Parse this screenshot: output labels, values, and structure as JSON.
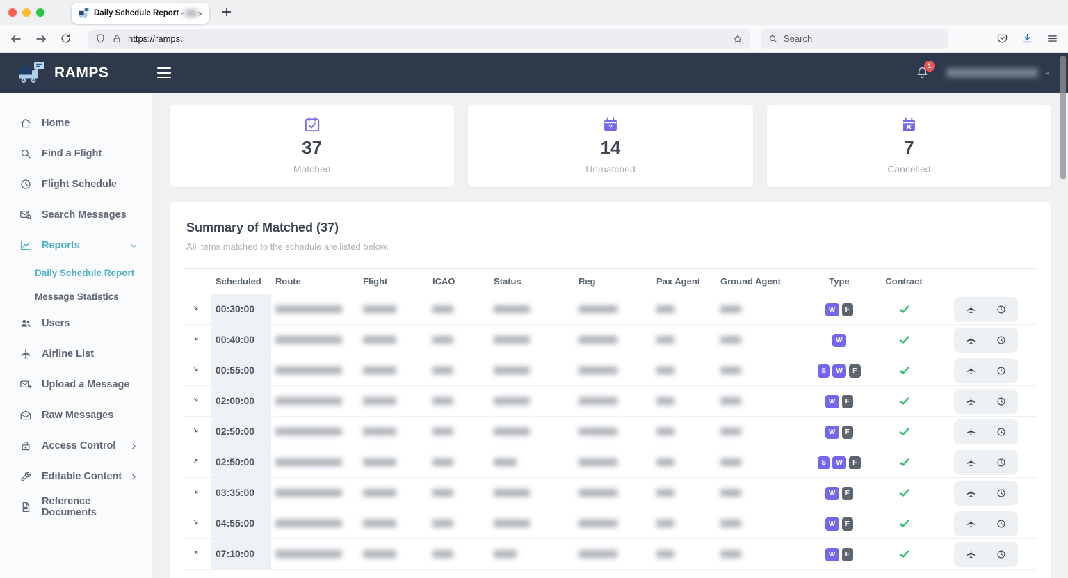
{
  "browser": {
    "tab_title": "Daily Schedule Report - ",
    "new_tab": "+",
    "close_tab": "×",
    "url": "https://ramps.",
    "search_placeholder": "Search"
  },
  "header": {
    "brand": "RAMPS",
    "notification_count": "1"
  },
  "sidebar": {
    "items": [
      {
        "label": "Home",
        "icon": "home"
      },
      {
        "label": "Find a Flight",
        "icon": "search"
      },
      {
        "label": "Flight Schedule",
        "icon": "clock"
      },
      {
        "label": "Search Messages",
        "icon": "mail-search"
      },
      {
        "label": "Reports",
        "icon": "chart",
        "active": true,
        "expand": "down",
        "children": [
          {
            "label": "Daily Schedule Report",
            "active": true
          },
          {
            "label": "Message Statistics",
            "active": false
          }
        ]
      },
      {
        "label": "Users",
        "icon": "users"
      },
      {
        "label": "Airline List",
        "icon": "plane"
      },
      {
        "label": "Upload a Message",
        "icon": "mail-plus"
      },
      {
        "label": "Raw Messages",
        "icon": "mail-open"
      },
      {
        "label": "Access Control",
        "icon": "lock",
        "expand": "right"
      },
      {
        "label": "Editable Content",
        "icon": "wrench",
        "expand": "right"
      },
      {
        "label": "Reference Documents",
        "icon": "document"
      }
    ]
  },
  "stats": [
    {
      "icon": "calendar-check",
      "value": "37",
      "label": "Matched"
    },
    {
      "icon": "calendar-question",
      "value": "14",
      "label": "Unmatched"
    },
    {
      "icon": "calendar-x",
      "value": "7",
      "label": "Cancelled"
    }
  ],
  "summary": {
    "title": "Summary of Matched (37)",
    "subtitle": "All items matched to the schedule are listed below."
  },
  "table": {
    "columns": [
      "Scheduled",
      "Route",
      "Flight",
      "ICAO",
      "Status",
      "Reg",
      "Pax Agent",
      "Ground Agent",
      "Type",
      "Contract"
    ],
    "redacted_columns": [
      "Route",
      "Flight",
      "ICAO",
      "Status",
      "Reg",
      "Pax Agent",
      "Ground Agent"
    ],
    "rows": [
      {
        "direction": "arrival",
        "scheduled": "00:30:00",
        "type_badges": [
          "W",
          "F"
        ],
        "contract": true
      },
      {
        "direction": "arrival",
        "scheduled": "00:40:00",
        "type_badges": [
          "W"
        ],
        "contract": true
      },
      {
        "direction": "arrival",
        "scheduled": "00:55:00",
        "type_badges": [
          "S",
          "W",
          "F"
        ],
        "contract": true
      },
      {
        "direction": "arrival",
        "scheduled": "02:00:00",
        "type_badges": [
          "W",
          "F"
        ],
        "contract": true
      },
      {
        "direction": "arrival",
        "scheduled": "02:50:00",
        "type_badges": [
          "W",
          "F"
        ],
        "contract": true
      },
      {
        "direction": "departure",
        "scheduled": "02:50:00",
        "type_badges": [
          "S",
          "W",
          "F"
        ],
        "contract": true
      },
      {
        "direction": "arrival",
        "scheduled": "03:35:00",
        "type_badges": [
          "W",
          "F"
        ],
        "contract": true
      },
      {
        "direction": "arrival",
        "scheduled": "04:55:00",
        "type_badges": [
          "W",
          "F"
        ],
        "contract": true
      },
      {
        "direction": "departure",
        "scheduled": "07:10:00",
        "type_badges": [
          "W",
          "F"
        ],
        "contract": true
      }
    ]
  },
  "colors": {
    "header_bg": "#2e3a4b",
    "accent_teal": "#4fb0c9",
    "accent_purple": "#7367f0",
    "badge_gray": "#5c6470",
    "success_green": "#2fbf71",
    "notification_red": "#ea5455"
  }
}
